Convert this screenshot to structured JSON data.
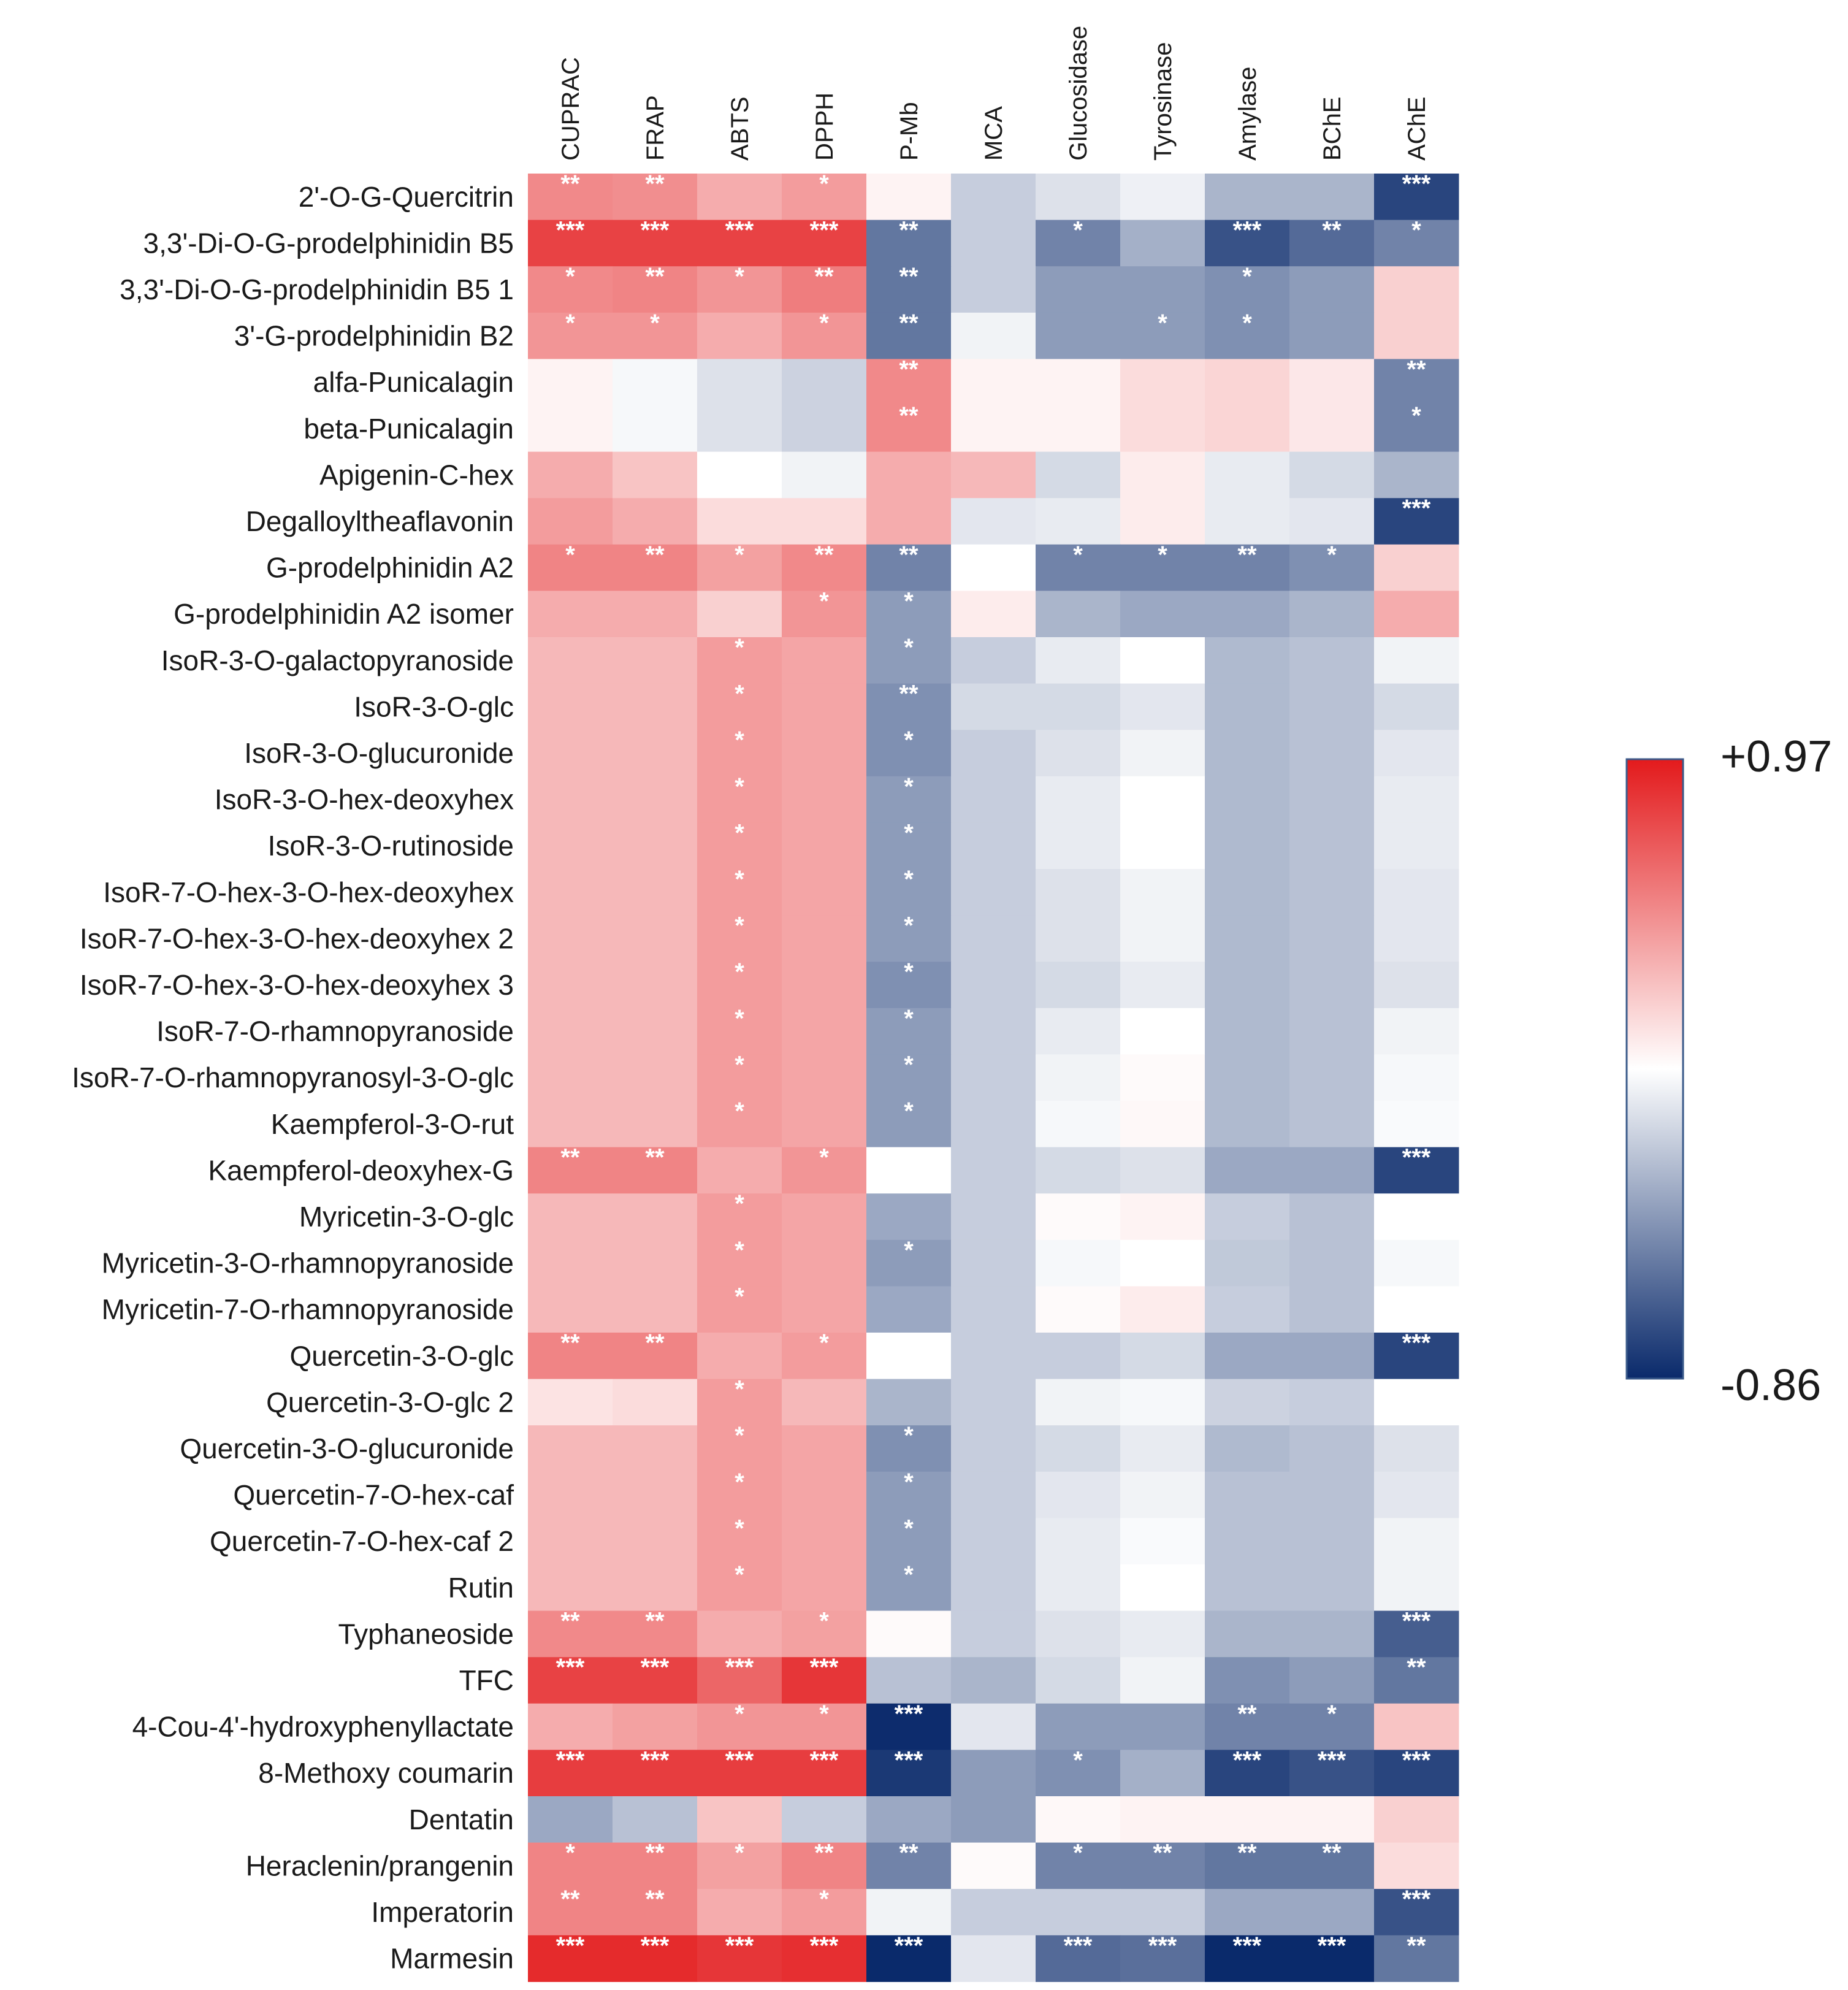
{
  "chart_data": {
    "type": "heatmap",
    "title": "",
    "columns": [
      "CUPRAC",
      "FRAP",
      "ABTS",
      "DPPH",
      "P-Mb",
      "MCA",
      "Glucosidase",
      "Tyrosinase",
      "Amylase",
      "BChE",
      "AChE"
    ],
    "rows": [
      {
        "label": "2'-O-G-Quercitrin",
        "values": [
          0.5,
          0.48,
          0.35,
          0.42,
          0.05,
          -0.2,
          -0.12,
          -0.06,
          -0.3,
          -0.3,
          -0.75
        ],
        "stars": [
          "**",
          "**",
          "",
          "*",
          "",
          "",
          "",
          "",
          "",
          "",
          "***"
        ]
      },
      {
        "label": "3,3'-Di-O-G-prodelphinidin B5",
        "values": [
          0.8,
          0.8,
          0.8,
          0.8,
          -0.55,
          -0.2,
          -0.5,
          -0.32,
          -0.7,
          -0.6,
          -0.5
        ],
        "stars": [
          "***",
          "***",
          "***",
          "***",
          "**",
          "",
          "*",
          "",
          "***",
          "**",
          "*"
        ]
      },
      {
        "label": "3,3'-Di-O-G-prodelphinidin B5 1",
        "values": [
          0.5,
          0.52,
          0.45,
          0.55,
          -0.55,
          -0.2,
          -0.4,
          -0.4,
          -0.45,
          -0.4,
          0.2
        ],
        "stars": [
          "*",
          "**",
          "*",
          "**",
          "**",
          "",
          "",
          "",
          "*",
          "",
          ""
        ]
      },
      {
        "label": "3'-G-prodelphinidin B2",
        "values": [
          0.45,
          0.45,
          0.35,
          0.45,
          -0.55,
          -0.05,
          -0.4,
          -0.4,
          -0.45,
          -0.4,
          0.2
        ],
        "stars": [
          "*",
          "*",
          "",
          "*",
          "**",
          "",
          "",
          "*",
          "*",
          "",
          ""
        ]
      },
      {
        "label": "alfa-Punicalagin",
        "values": [
          0.05,
          -0.03,
          -0.12,
          -0.18,
          0.5,
          0.05,
          0.05,
          0.15,
          0.18,
          0.1,
          -0.5
        ],
        "stars": [
          "",
          "",
          "",
          "",
          "**",
          "",
          "",
          "",
          "",
          "",
          "**"
        ]
      },
      {
        "label": "beta-Punicalagin",
        "values": [
          0.05,
          -0.03,
          -0.12,
          -0.18,
          0.5,
          0.05,
          0.05,
          0.15,
          0.18,
          0.1,
          -0.5
        ],
        "stars": [
          "",
          "",
          "",
          "",
          "**",
          "",
          "",
          "",
          "",
          "",
          "*"
        ]
      },
      {
        "label": "Apigenin-C-hex",
        "values": [
          0.35,
          0.25,
          0.0,
          -0.05,
          0.35,
          0.3,
          -0.15,
          0.08,
          -0.08,
          -0.15,
          -0.3
        ],
        "stars": [
          "",
          "",
          "",
          "",
          "",
          "",
          "",
          "",
          "",
          "",
          ""
        ]
      },
      {
        "label": "Degalloyltheaflavonin",
        "values": [
          0.42,
          0.35,
          0.15,
          0.15,
          0.35,
          -0.1,
          -0.08,
          0.08,
          -0.08,
          -0.1,
          -0.75
        ],
        "stars": [
          "",
          "",
          "",
          "",
          "",
          "",
          "",
          "",
          "",
          "",
          "***"
        ]
      },
      {
        "label": "G-prodelphinidin A2",
        "values": [
          0.52,
          0.52,
          0.4,
          0.5,
          -0.5,
          0.0,
          -0.5,
          -0.5,
          -0.5,
          -0.45,
          0.2
        ],
        "stars": [
          "*",
          "**",
          "*",
          "**",
          "**",
          "",
          "*",
          "*",
          "**",
          "*",
          ""
        ]
      },
      {
        "label": "G-prodelphinidin A2 isomer",
        "values": [
          0.35,
          0.35,
          0.2,
          0.45,
          -0.4,
          0.08,
          -0.3,
          -0.35,
          -0.35,
          -0.3,
          0.35
        ],
        "stars": [
          "",
          "",
          "",
          "*",
          "*",
          "",
          "",
          "",
          "",
          "",
          ""
        ]
      },
      {
        "label": "IsoR-3-O-galactopyranoside",
        "values": [
          0.3,
          0.3,
          0.42,
          0.38,
          -0.4,
          -0.2,
          -0.08,
          0.0,
          -0.28,
          -0.25,
          -0.05
        ],
        "stars": [
          "",
          "",
          "*",
          "",
          "*",
          "",
          "",
          "",
          "",
          "",
          ""
        ]
      },
      {
        "label": "IsoR-3-O-glc",
        "values": [
          0.3,
          0.3,
          0.42,
          0.38,
          -0.45,
          -0.15,
          -0.15,
          -0.1,
          -0.28,
          -0.25,
          -0.15
        ],
        "stars": [
          "",
          "",
          "*",
          "",
          "**",
          "",
          "",
          "",
          "",
          "",
          ""
        ]
      },
      {
        "label": "IsoR-3-O-glucuronide",
        "values": [
          0.3,
          0.3,
          0.42,
          0.38,
          -0.45,
          -0.2,
          -0.12,
          -0.05,
          -0.28,
          -0.25,
          -0.1
        ],
        "stars": [
          "",
          "",
          "*",
          "",
          "*",
          "",
          "",
          "",
          "",
          "",
          ""
        ]
      },
      {
        "label": "IsoR-3-O-hex-deoxyhex",
        "values": [
          0.3,
          0.3,
          0.42,
          0.38,
          -0.4,
          -0.2,
          -0.08,
          0.0,
          -0.28,
          -0.25,
          -0.08
        ],
        "stars": [
          "",
          "",
          "*",
          "",
          "*",
          "",
          "",
          "",
          "",
          "",
          ""
        ]
      },
      {
        "label": "IsoR-3-O-rutinoside",
        "values": [
          0.3,
          0.3,
          0.42,
          0.38,
          -0.4,
          -0.2,
          -0.08,
          0.0,
          -0.28,
          -0.25,
          -0.08
        ],
        "stars": [
          "",
          "",
          "*",
          "",
          "*",
          "",
          "",
          "",
          "",
          "",
          ""
        ]
      },
      {
        "label": "IsoR-7-O-hex-3-O-hex-deoxyhex",
        "values": [
          0.3,
          0.3,
          0.42,
          0.38,
          -0.4,
          -0.2,
          -0.12,
          -0.05,
          -0.28,
          -0.25,
          -0.1
        ],
        "stars": [
          "",
          "",
          "*",
          "",
          "*",
          "",
          "",
          "",
          "",
          "",
          ""
        ]
      },
      {
        "label": "IsoR-7-O-hex-3-O-hex-deoxyhex 2",
        "values": [
          0.3,
          0.3,
          0.42,
          0.38,
          -0.4,
          -0.2,
          -0.12,
          -0.05,
          -0.28,
          -0.25,
          -0.1
        ],
        "stars": [
          "",
          "",
          "*",
          "",
          "*",
          "",
          "",
          "",
          "",
          "",
          ""
        ]
      },
      {
        "label": "IsoR-7-O-hex-3-O-hex-deoxyhex 3",
        "values": [
          0.3,
          0.3,
          0.42,
          0.38,
          -0.45,
          -0.2,
          -0.15,
          -0.08,
          -0.28,
          -0.25,
          -0.12
        ],
        "stars": [
          "",
          "",
          "*",
          "",
          "*",
          "",
          "",
          "",
          "",
          "",
          ""
        ]
      },
      {
        "label": "IsoR-7-O-rhamnopyranoside",
        "values": [
          0.3,
          0.3,
          0.42,
          0.38,
          -0.4,
          -0.2,
          -0.08,
          0.0,
          -0.28,
          -0.25,
          -0.05
        ],
        "stars": [
          "",
          "",
          "*",
          "",
          "*",
          "",
          "",
          "",
          "",
          "",
          ""
        ]
      },
      {
        "label": "IsoR-7-O-rhamnopyranosyl-3-O-glc",
        "values": [
          0.3,
          0.3,
          0.42,
          0.38,
          -0.4,
          -0.2,
          -0.05,
          0.02,
          -0.28,
          -0.25,
          -0.03
        ],
        "stars": [
          "",
          "",
          "*",
          "",
          "*",
          "",
          "",
          "",
          "",
          "",
          ""
        ]
      },
      {
        "label": "Kaempferol-3-O-rut",
        "values": [
          0.3,
          0.3,
          0.42,
          0.38,
          -0.4,
          -0.2,
          -0.03,
          0.03,
          -0.28,
          -0.25,
          -0.02
        ],
        "stars": [
          "",
          "",
          "*",
          "",
          "*",
          "",
          "",
          "",
          "",
          "",
          ""
        ]
      },
      {
        "label": "Kaempferol-deoxyhex-G",
        "values": [
          0.52,
          0.52,
          0.35,
          0.45,
          0.0,
          -0.2,
          -0.15,
          -0.12,
          -0.35,
          -0.35,
          -0.75
        ],
        "stars": [
          "**",
          "**",
          "",
          "*",
          "",
          "",
          "",
          "",
          "",
          "",
          "***"
        ]
      },
      {
        "label": "Myricetin-3-O-glc",
        "values": [
          0.3,
          0.3,
          0.42,
          0.38,
          -0.35,
          -0.2,
          0.02,
          0.05,
          -0.2,
          -0.25,
          0.0
        ],
        "stars": [
          "",
          "",
          "*",
          "",
          "",
          "",
          "",
          "",
          "",
          "",
          ""
        ]
      },
      {
        "label": "Myricetin-3-O-rhamnopyranoside",
        "values": [
          0.3,
          0.3,
          0.42,
          0.38,
          -0.4,
          -0.2,
          -0.03,
          0.0,
          -0.22,
          -0.25,
          -0.03
        ],
        "stars": [
          "",
          "",
          "*",
          "",
          "*",
          "",
          "",
          "",
          "",
          "",
          ""
        ]
      },
      {
        "label": "Myricetin-7-O-rhamnopyranoside",
        "values": [
          0.3,
          0.3,
          0.42,
          0.38,
          -0.35,
          -0.2,
          0.02,
          0.08,
          -0.2,
          -0.25,
          0.0
        ],
        "stars": [
          "",
          "",
          "*",
          "",
          "",
          "",
          "",
          "",
          "",
          "",
          ""
        ]
      },
      {
        "label": "Quercetin-3-O-glc",
        "values": [
          0.52,
          0.52,
          0.35,
          0.42,
          0.0,
          -0.2,
          -0.2,
          -0.15,
          -0.35,
          -0.35,
          -0.75
        ],
        "stars": [
          "**",
          "**",
          "",
          "*",
          "",
          "",
          "",
          "",
          "",
          "",
          "***"
        ]
      },
      {
        "label": "Quercetin-3-O-glc 2",
        "values": [
          0.12,
          0.15,
          0.42,
          0.3,
          -0.3,
          -0.2,
          -0.05,
          -0.03,
          -0.18,
          -0.2,
          0.0
        ],
        "stars": [
          "",
          "",
          "*",
          "",
          "",
          "",
          "",
          "",
          "",
          "",
          ""
        ]
      },
      {
        "label": "Quercetin-3-O-glucuronide",
        "values": [
          0.3,
          0.3,
          0.42,
          0.38,
          -0.45,
          -0.2,
          -0.15,
          -0.08,
          -0.28,
          -0.25,
          -0.12
        ],
        "stars": [
          "",
          "",
          "*",
          "",
          "*",
          "",
          "",
          "",
          "",
          "",
          ""
        ]
      },
      {
        "label": "Quercetin-7-O-hex-caf",
        "values": [
          0.3,
          0.3,
          0.42,
          0.38,
          -0.4,
          -0.2,
          -0.1,
          -0.05,
          -0.25,
          -0.25,
          -0.1
        ],
        "stars": [
          "",
          "",
          "*",
          "",
          "*",
          "",
          "",
          "",
          "",
          "",
          ""
        ]
      },
      {
        "label": "Quercetin-7-O-hex-caf 2",
        "values": [
          0.3,
          0.3,
          0.42,
          0.38,
          -0.4,
          -0.2,
          -0.08,
          -0.02,
          -0.25,
          -0.25,
          -0.05
        ],
        "stars": [
          "",
          "",
          "*",
          "",
          "*",
          "",
          "",
          "",
          "",
          "",
          ""
        ]
      },
      {
        "label": "Rutin",
        "values": [
          0.3,
          0.3,
          0.42,
          0.38,
          -0.4,
          -0.2,
          -0.08,
          0.0,
          -0.25,
          -0.25,
          -0.05
        ],
        "stars": [
          "",
          "",
          "*",
          "",
          "*",
          "",
          "",
          "",
          "",
          "",
          ""
        ]
      },
      {
        "label": "Typhaneoside",
        "values": [
          0.5,
          0.5,
          0.35,
          0.4,
          0.02,
          -0.2,
          -0.12,
          -0.08,
          -0.3,
          -0.3,
          -0.65
        ],
        "stars": [
          "**",
          "**",
          "",
          "*",
          "",
          "",
          "",
          "",
          "",
          "",
          "***"
        ]
      },
      {
        "label": "TFC",
        "values": [
          0.8,
          0.8,
          0.65,
          0.85,
          -0.25,
          -0.3,
          -0.15,
          -0.05,
          -0.45,
          -0.4,
          -0.55
        ],
        "stars": [
          "***",
          "***",
          "***",
          "***",
          "",
          "",
          "",
          "",
          "",
          "",
          "**"
        ]
      },
      {
        "label": "4-Cou-4'-hydroxyphenyllactate",
        "values": [
          0.35,
          0.4,
          0.45,
          0.45,
          -0.85,
          -0.1,
          -0.4,
          -0.4,
          -0.5,
          -0.5,
          0.25
        ],
        "stars": [
          "",
          "",
          "*",
          "*",
          "***",
          "",
          "",
          "",
          "**",
          "*",
          ""
        ]
      },
      {
        "label": "8-Methoxy coumarin",
        "values": [
          0.82,
          0.82,
          0.82,
          0.82,
          -0.8,
          -0.4,
          -0.45,
          -0.32,
          -0.75,
          -0.7,
          -0.75
        ],
        "stars": [
          "***",
          "***",
          "***",
          "***",
          "***",
          "",
          "*",
          "",
          "***",
          "***",
          "***"
        ]
      },
      {
        "label": "Dentatin",
        "values": [
          -0.35,
          -0.25,
          0.25,
          -0.2,
          -0.35,
          -0.4,
          0.03,
          0.05,
          0.05,
          0.05,
          0.2
        ],
        "stars": [
          "",
          "",
          "",
          "",
          "",
          "",
          "",
          "",
          "",
          "",
          ""
        ]
      },
      {
        "label": "Heraclenin/prangenin",
        "values": [
          0.52,
          0.52,
          0.4,
          0.52,
          -0.5,
          0.02,
          -0.5,
          -0.5,
          -0.55,
          -0.55,
          0.15
        ],
        "stars": [
          "*",
          "**",
          "*",
          "**",
          "**",
          "",
          "*",
          "**",
          "**",
          "**",
          ""
        ]
      },
      {
        "label": "Imperatorin",
        "values": [
          0.52,
          0.52,
          0.35,
          0.42,
          -0.05,
          -0.2,
          -0.2,
          -0.2,
          -0.35,
          -0.35,
          -0.7
        ],
        "stars": [
          "**",
          "**",
          "",
          "*",
          "",
          "",
          "",
          "",
          "",
          "",
          "***"
        ]
      },
      {
        "label": "Marmesin",
        "values": [
          0.9,
          0.9,
          0.85,
          0.88,
          -0.86,
          -0.1,
          -0.6,
          -0.58,
          -0.86,
          -0.86,
          -0.55
        ],
        "stars": [
          "***",
          "***",
          "***",
          "***",
          "***",
          "",
          "***",
          "***",
          "***",
          "***",
          "**"
        ]
      }
    ],
    "colorbar": {
      "max_label": "+0.97",
      "min_label": "-0.86",
      "vmax": 0.97,
      "vmin": -0.86
    },
    "colors": {
      "high": "#e31a1c",
      "mid": "#ffffff",
      "low": "#0a2a6b"
    }
  }
}
